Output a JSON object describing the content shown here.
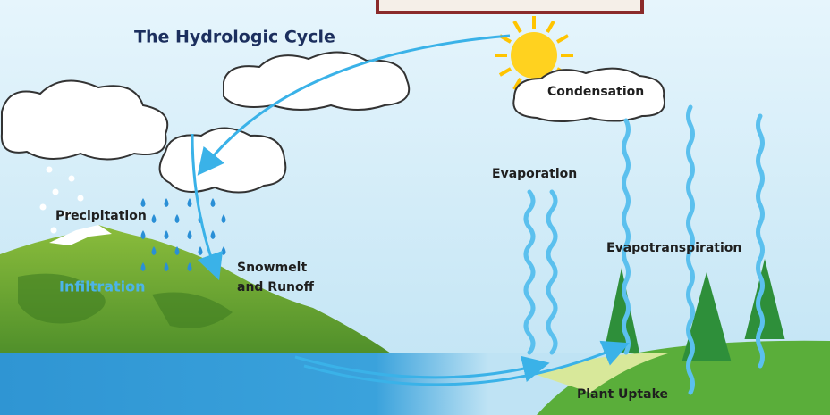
{
  "title": "The Hydrologic Cycle",
  "labels": {
    "precipitation": "Precipitation",
    "infiltration": "Infiltration",
    "snowmelt_and_runoff": [
      "Snowmelt",
      "and Runoff"
    ],
    "evaporation": "Evaporation",
    "condensation": "Condensation",
    "evapotranspiration": "Evapotranspiration",
    "plant_uptake": "Plant Uptake"
  }
}
